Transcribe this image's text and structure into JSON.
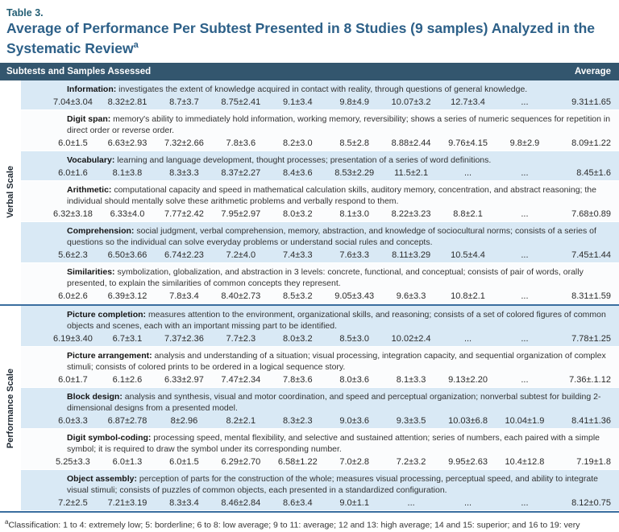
{
  "table_label": "Table 3.",
  "title": "Average of Performance Per Subtest Presented in 8 Studies (9 samples) Analyzed in the Systematic Review",
  "title_superscript": "a",
  "header": {
    "left": "Subtests and Samples Assessed",
    "right": "Average"
  },
  "colors": {
    "header_bar": "#33566e",
    "row_blue": "#d9e9f5",
    "row_white": "#fbfcfd",
    "title_blue": "#2d6088",
    "table_label_teal": "#245f75",
    "section_divider_blue": "#3a6e9f",
    "bottom_rule_gray_blue": "#7c92a6"
  },
  "sections": [
    {
      "label": "Verbal Scale",
      "subtests": [
        {
          "name": "Information:",
          "description": "investigates the extent of knowledge acquired in contact with reality, through questions of general knowledge.",
          "values": [
            "7.04±3.04",
            "8.32±2.81",
            "8.7±3.7",
            "8.75±2.41",
            "9.1±3.4",
            "9.8±4.9",
            "10.07±3.2",
            "12.7±3.4",
            "..."
          ],
          "average": "9.31±1.65"
        },
        {
          "name": "Digit span:",
          "description": "memory's ability to immediately hold information, working memory, reversibility; shows a series of numeric sequences for repetition in direct order or reverse order.",
          "values": [
            "6.0±1.5",
            "6.63±2.93",
            "7.32±2.66",
            "7.8±3.6",
            "8.2±3.0",
            "8.5±2.8",
            "8.88±2.44",
            "9.76±4.15",
            "9.8±2.9"
          ],
          "average": "8.09±1.22"
        },
        {
          "name": "Vocabulary:",
          "description": "learning and language development, thought processes; presentation of a series of word definitions.",
          "values": [
            "6.0±1.6",
            "8.1±3.8",
            "8.3±3.3",
            "8.37±2.27",
            "8.4±3.6",
            "8.53±2.29",
            "11.5±2.1",
            "...",
            "..."
          ],
          "average": "8.45±1.6"
        },
        {
          "name": "Arithmetic:",
          "description": "computational capacity and speed in mathematical calculation skills, auditory memory, concentration, and abstract reasoning; the individual should mentally solve these arithmetic problems and verbally respond to them.",
          "values": [
            "6.32±3.18",
            "6.33±4.0",
            "7.77±2.42",
            "7.95±2.97",
            "8.0±3.2",
            "8.1±3.0",
            "8.22±3.23",
            "8.8±2.1",
            "..."
          ],
          "average": "7.68±0.89"
        },
        {
          "name": "Comprehension:",
          "description": "social judgment, verbal comprehension, memory, abstraction, and knowledge of sociocultural norms; consists of a series of questions so the individual can solve everyday problems or understand social rules and concepts.",
          "values": [
            "5.6±2.3",
            "6.50±3.66",
            "6.74±2.23",
            "7.2±4.0",
            "7.4±3.3",
            "7.6±3.3",
            "8.11±3.29",
            "10.5±4.4",
            "..."
          ],
          "average": "7.45±1.44"
        },
        {
          "name": "Similarities:",
          "description": "symbolization, globalization, and abstraction in 3 levels: concrete, functional, and conceptual; consists of pair of words, orally presented, to explain the similarities of common concepts they represent.",
          "values": [
            "6.0±2.6",
            "6.39±3.12",
            "7.8±3.4",
            "8.40±2.73",
            "8.5±3.2",
            "9.05±3.43",
            "9.6±3.3",
            "10.8±2.1",
            "..."
          ],
          "average": "8.31±1.59"
        }
      ]
    },
    {
      "label": "Performance Scale",
      "subtests": [
        {
          "name": "Picture completion:",
          "description": "measures attention to the environment, organizational skills, and reasoning; consists of a set of colored figures of common objects and scenes, each with an important missing part to be identified.",
          "values": [
            "6.19±3.40",
            "6.7±3.1",
            "7.37±2.36",
            "7.7±2.3",
            "8.0±3.2",
            "8.5±3.0",
            "10.02±2.4",
            "...",
            "..."
          ],
          "average": "7.78±1.25"
        },
        {
          "name": "Picture arrangement:",
          "description": "analysis and understanding of a situation; visual processing, integration capacity, and sequential organization of complex stimuli; consists of colored prints to be ordered in a logical sequence story.",
          "values": [
            "6.0±1.7",
            "6.1±2.6",
            "6.33±2.97",
            "7.47±2.34",
            "7.8±3.6",
            "8.0±3.6",
            "8.1±3.3",
            "9.13±2.20",
            "..."
          ],
          "average": "7.36±.1.12"
        },
        {
          "name": "Block design:",
          "description": "analysis and synthesis, visual and motor coordination, and speed and perceptual organization; nonverbal subtest for building 2-dimensional designs from a presented model.",
          "values": [
            "6.0±3.3",
            "6.87±2.78",
            "8±2.96",
            "8.2±2.1",
            "8.3±2.3",
            "9.0±3.6",
            "9.3±3.5",
            "10.03±6.8",
            "10.04±1.9"
          ],
          "average": "8.41±1.36"
        },
        {
          "name": "Digit symbol-coding:",
          "description": "processing speed, mental flexibility, and selective and sustained attention; series of numbers, each paired with a simple symbol; it is required to draw the symbol under its corresponding number.",
          "values": [
            "5.25±3.3",
            "6.0±1.3",
            "6.0±1.5",
            "6.29±2.70",
            "6.58±1.22",
            "7.0±2.8",
            "7.2±3.2",
            "9.95±2.63",
            "10.4±12.8"
          ],
          "average": "7.19±1.8"
        },
        {
          "name": "Object assembly:",
          "description": "perception of parts for the construction of the whole; measures visual processing, perceptual speed, and ability to integrate visual stimuli; consists of puzzles of common objects, each presented in a standardized configuration.",
          "values": [
            "7.2±2.5",
            "7.21±3.19",
            "8.3±3.4",
            "8.46±2.84",
            "8.6±3.4",
            "9.0±1.1",
            "...",
            "...",
            "..."
          ],
          "average": "8.12±0.75"
        }
      ]
    }
  ],
  "footnote": {
    "marker": "a",
    "text": "Classification: 1 to 4: extremely low; 5: borderline; 6 to 8: low average; 9 to 11: average; 12 and 13: high average; 14 and 15: superior; and 16 to 19: very superior."
  }
}
